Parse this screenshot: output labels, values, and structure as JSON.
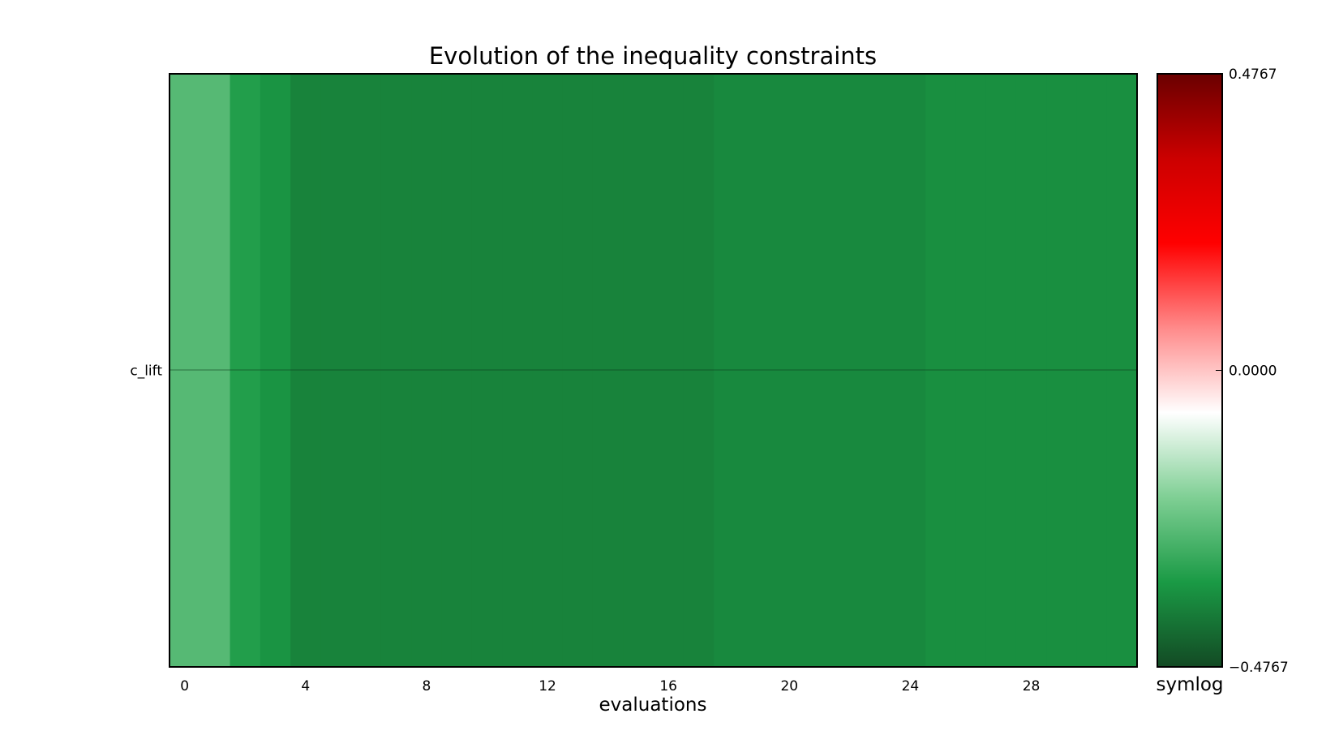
{
  "chart_data": {
    "type": "heatmap",
    "title": "Evolution of the inequality constraints",
    "xlabel": "evaluations",
    "ylabel": "",
    "rows": [
      "c_lift"
    ],
    "x_ticks": [
      "0",
      "4",
      "8",
      "12",
      "16",
      "20",
      "24",
      "28"
    ],
    "x": [
      0,
      1,
      2,
      3,
      4,
      5,
      6,
      7,
      8,
      9,
      10,
      11,
      12,
      13,
      14,
      15,
      16,
      17,
      18,
      19,
      20,
      21,
      22,
      23,
      24,
      25,
      26,
      27,
      28,
      29,
      30,
      31
    ],
    "xlim": [
      -0.5,
      31.5
    ],
    "values": [
      [
        -0.26,
        -0.26,
        -0.33,
        -0.35,
        -0.38,
        -0.38,
        -0.38,
        -0.38,
        -0.38,
        -0.38,
        -0.38,
        -0.38,
        -0.38,
        -0.38,
        -0.38,
        -0.38,
        -0.38,
        -0.38,
        -0.37,
        -0.37,
        -0.37,
        -0.37,
        -0.37,
        -0.37,
        -0.37,
        -0.36,
        -0.36,
        -0.36,
        -0.36,
        -0.36,
        -0.36,
        -0.36
      ]
    ],
    "colorbar": {
      "min": -0.4767,
      "max": 0.4767,
      "tick_labels": [
        "0.4767",
        "0.0000",
        "−0.4767"
      ],
      "label": "symlog",
      "scale": "symlog",
      "colormap": [
        "#134a24",
        "#1a9a45",
        "#7fcf94",
        "#ffffff",
        "#ff8a8a",
        "#ff0000",
        "#cc0000",
        "#6a0000"
      ]
    }
  }
}
